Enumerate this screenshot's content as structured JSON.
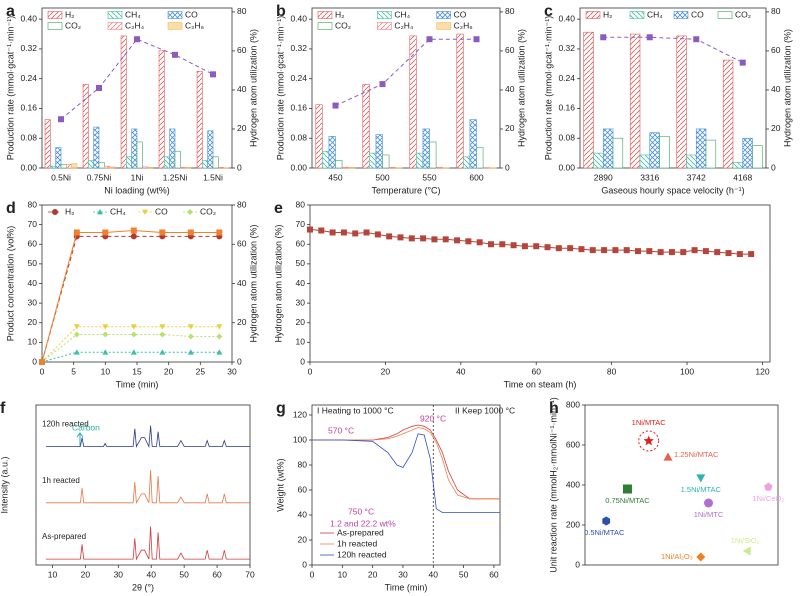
{
  "chart_data": [
    {
      "panel": "a",
      "type": "bar",
      "categories": [
        "0.5Ni",
        "0.75Ni",
        "1Ni",
        "1.25Ni",
        "1.5Ni"
      ],
      "xlabel": "Ni loading (wt%)",
      "ylabel": "Production rate (mmol·gcat⁻¹·min⁻¹)",
      "y2label": "Hydrogen atom utilization (%)",
      "ylim": [
        0,
        0.43
      ],
      "yticks": [
        {
          "value": 0,
          "label": "0.00"
        },
        0.08,
        0.16,
        0.24,
        0.32,
        {
          "value": 0.4,
          "label": "0.40"
        }
      ],
      "y2lim": [
        0,
        82
      ],
      "y2ticks": [
        0,
        20,
        40,
        60,
        80
      ],
      "legend": "top",
      "series": [
        {
          "name": "H₂",
          "color": "#e05a5a",
          "hatch": "/",
          "values": [
            0.13,
            0.225,
            0.355,
            0.315,
            0.26
          ]
        },
        {
          "name": "CH₄",
          "color": "#3cbfa0",
          "hatch": "\\",
          "values": [
            0.005,
            0.02,
            0.03,
            0.03,
            0.02
          ]
        },
        {
          "name": "CO",
          "color": "#4a90d9",
          "hatch": "x",
          "values": [
            0.055,
            0.11,
            0.105,
            0.105,
            0.1
          ]
        },
        {
          "name": "CO₂",
          "color": "#3aa858",
          "hatch": "none",
          "values": [
            0.01,
            0.015,
            0.07,
            0.045,
            0.03
          ]
        },
        {
          "name": "C₂H₄",
          "color": "#f08080",
          "hatch": "/",
          "values": [
            0.01,
            0.005,
            0.003,
            0.002,
            0.002
          ]
        },
        {
          "name": "C₂H₆",
          "color": "#f5c060",
          "hatch": "solid",
          "values": [
            0.012,
            0.003,
            0.002,
            0.002,
            0.001
          ]
        },
        {
          "color": "#8a5cc0",
          "axis": "y2",
          "marker": "square",
          "line_style": "dashed",
          "values": [
            25,
            41,
            66,
            58,
            48
          ]
        }
      ]
    },
    {
      "panel": "b",
      "type": "bar",
      "categories": [
        "450",
        "500",
        "550",
        "600"
      ],
      "xlabel": "Temperature (°C)",
      "ylabel": "Production rate (mmol·gcat⁻¹·min⁻¹)",
      "y2label": "Hydrogen atom utilization (%)",
      "ylim": [
        0,
        0.43
      ],
      "yticks": [
        {
          "value": 0,
          "label": "0.00"
        },
        0.08,
        0.16,
        0.24,
        0.32,
        {
          "value": 0.4,
          "label": "0.40"
        }
      ],
      "y2lim": [
        0,
        82
      ],
      "y2ticks": [
        0,
        20,
        40,
        60,
        80
      ],
      "legend": "top",
      "series": [
        {
          "name": "H₂",
          "color": "#e05a5a",
          "hatch": "/",
          "values": [
            0.17,
            0.225,
            0.355,
            0.36
          ]
        },
        {
          "name": "CH₄",
          "color": "#3cbfa0",
          "hatch": "\\",
          "values": [
            0.045,
            0.04,
            0.04,
            0.03
          ]
        },
        {
          "name": "CO",
          "color": "#4a90d9",
          "hatch": "x",
          "values": [
            0.085,
            0.09,
            0.105,
            0.13
          ]
        },
        {
          "name": "CO₂",
          "color": "#3aa858",
          "hatch": "none",
          "values": [
            0.02,
            0.035,
            0.07,
            0.055
          ]
        },
        {
          "name": "C₂H₄",
          "color": "#f08080",
          "hatch": "/",
          "values": [
            0.002,
            0.002,
            0.002,
            0.001
          ]
        },
        {
          "name": "C₂H₆",
          "color": "#f5c060",
          "hatch": "solid",
          "values": [
            0.002,
            0.001,
            0.001,
            0.001
          ]
        },
        {
          "color": "#8a5cc0",
          "axis": "y2",
          "marker": "square",
          "line_style": "dashed",
          "values": [
            32,
            43,
            66,
            66
          ]
        }
      ]
    },
    {
      "panel": "c",
      "type": "bar",
      "categories": [
        "2890",
        "3316",
        "3742",
        "4168"
      ],
      "xlabel": "Gaseous hourly space velocity (h⁻¹)",
      "ylabel": "Production rate (mmol·gcat⁻¹·min⁻¹)",
      "y2label": "Hydrogen atom utilization (%)",
      "ylim": [
        0,
        0.43
      ],
      "yticks": [
        {
          "value": 0,
          "label": "0.00"
        },
        0.08,
        0.16,
        0.24,
        0.32,
        {
          "value": 0.4,
          "label": "0.40"
        }
      ],
      "y2lim": [
        0,
        82
      ],
      "y2ticks": [
        0,
        20,
        40,
        60,
        80
      ],
      "legend": "top",
      "series": [
        {
          "name": "H₂",
          "color": "#e05a5a",
          "hatch": "/",
          "values": [
            0.365,
            0.36,
            0.355,
            0.29
          ]
        },
        {
          "name": "CH₄",
          "color": "#3cbfa0",
          "hatch": "\\",
          "values": [
            0.04,
            0.035,
            0.035,
            0.015
          ]
        },
        {
          "name": "CO",
          "color": "#4a90d9",
          "hatch": "x",
          "values": [
            0.105,
            0.095,
            0.105,
            0.08
          ]
        },
        {
          "name": "CO₂",
          "color": "#3aa858",
          "hatch": "none",
          "values": [
            0.08,
            0.085,
            0.075,
            0.06
          ]
        },
        {
          "color": "#8a5cc0",
          "axis": "y2",
          "marker": "square",
          "line_style": "dashed",
          "values": [
            67,
            67,
            66,
            54
          ]
        }
      ]
    },
    {
      "panel": "d",
      "type": "line",
      "x": [
        0,
        5.5,
        10,
        14.5,
        19,
        23.5,
        28
      ],
      "xlabel": "Time (min)",
      "ylabel": "Product concentration (vol%)",
      "y2label": "Hydrogen atom utilization (%)",
      "xlim": [
        0,
        30
      ],
      "xticks": [
        0,
        5,
        10,
        15,
        20,
        25,
        30
      ],
      "ylim": [
        0,
        80
      ],
      "yticks": [
        0,
        10,
        20,
        30,
        40,
        50,
        60,
        70,
        80
      ],
      "y2lim": [
        0,
        80
      ],
      "y2ticks": [
        0,
        20,
        40,
        60,
        80
      ],
      "legend": "top",
      "series": [
        {
          "name": "H₂",
          "color": "#b03a2e",
          "marker": "circle",
          "line_style": "dashed",
          "values": [
            0,
            64,
            64,
            64,
            64,
            64,
            64
          ]
        },
        {
          "name": "CH₄",
          "color": "#3cbfa8",
          "marker": "triangle",
          "line_style": "dotted",
          "values": [
            0,
            5,
            5,
            5,
            5,
            5,
            5
          ]
        },
        {
          "name": "CO",
          "color": "#e8d040",
          "marker": "triangle-down",
          "line_style": "dotted",
          "values": [
            0,
            18,
            18,
            18,
            18,
            18,
            18
          ]
        },
        {
          "name": "CO₂",
          "color": "#b8e070",
          "marker": "diamond",
          "line_style": "dotted",
          "values": [
            0,
            14,
            14,
            14,
            14,
            13,
            13
          ]
        },
        {
          "color": "#f08030",
          "axis": "y2",
          "marker": "square",
          "line_style": "solid",
          "values": [
            0,
            66,
            66,
            67,
            66,
            66,
            66
          ]
        }
      ]
    },
    {
      "panel": "e",
      "type": "line",
      "x": [
        0,
        3,
        6,
        9,
        12,
        15,
        18,
        21,
        24,
        27,
        30,
        33,
        36,
        39,
        42,
        45,
        48,
        51,
        54,
        57,
        60,
        63,
        66,
        69,
        72,
        75,
        78,
        81,
        84,
        87,
        90,
        93,
        96,
        99,
        102,
        105,
        108,
        111,
        114,
        117
      ],
      "xlabel": "Time on steam (h)",
      "ylabel": "Hydrogen atom utilization (%)",
      "xlim": [
        0,
        122
      ],
      "xticks": [
        0,
        20,
        40,
        60,
        80,
        100,
        120
      ],
      "ylim": [
        0,
        80
      ],
      "yticks": [
        0,
        10,
        20,
        30,
        40,
        50,
        60,
        70,
        80
      ],
      "series": [
        {
          "color": "#b5453a",
          "marker": "square",
          "line_style": "solid",
          "values": [
            67.5,
            67,
            66,
            66,
            65.5,
            66,
            65,
            64,
            63.5,
            63,
            63,
            62.5,
            62.5,
            62,
            61.5,
            61,
            60,
            60,
            59.5,
            59,
            59,
            58.5,
            58,
            58,
            57.5,
            57,
            57,
            57,
            57,
            56.5,
            56.5,
            56,
            56,
            56,
            57,
            56.5,
            56,
            55.5,
            55,
            55
          ]
        }
      ]
    },
    {
      "panel": "f",
      "type": "line",
      "x": [
        8,
        18.5,
        19,
        19.5,
        25.5,
        26,
        26.5,
        34.5,
        35,
        35.5,
        37,
        38,
        39.3,
        39.8,
        40.3,
        41.6,
        42.1,
        42.6,
        48,
        49,
        50,
        56.4,
        57,
        57.6,
        61.6,
        62.2,
        62.8,
        70
      ],
      "xlabel": "2θ (°)",
      "ylabel": "Intensity (a.u.)",
      "xlim": [
        5,
        70
      ],
      "xticks": [
        10,
        20,
        30,
        40,
        50,
        60,
        70
      ],
      "ylim": [
        0,
        2.7
      ],
      "legend": "inline",
      "annotations": [
        {
          "text": "Carbon",
          "color": "#2ab0a0"
        }
      ],
      "series": [
        {
          "name": "120h reacted",
          "color": "#2a3a8c",
          "line_style": "solid",
          "values": [
            2.0,
            2.0,
            2.15,
            2.0,
            2.0,
            2.05,
            2.0,
            2.0,
            2.3,
            2.0,
            2.15,
            2.15,
            2.0,
            2.35,
            2.0,
            2.0,
            2.25,
            2.0,
            2.0,
            2.1,
            2.0,
            2.0,
            2.1,
            2.0,
            2.0,
            2.1,
            2.0,
            2.0
          ]
        },
        {
          "name": "1h reacted",
          "color": "#e8784a",
          "line_style": "solid",
          "values": [
            1.05,
            1.05,
            1.3,
            1.05,
            1.05,
            1.05,
            1.05,
            1.05,
            1.4,
            1.05,
            1.2,
            1.2,
            1.05,
            1.6,
            1.05,
            1.05,
            1.5,
            1.05,
            1.05,
            1.15,
            1.05,
            1.05,
            1.2,
            1.05,
            1.05,
            1.2,
            1.05,
            1.05
          ]
        },
        {
          "name": "As-prepared",
          "color": "#d03a3a",
          "line_style": "solid",
          "values": [
            0.1,
            0.1,
            0.35,
            0.1,
            0.1,
            0.1,
            0.1,
            0.1,
            0.45,
            0.1,
            0.25,
            0.25,
            0.1,
            0.65,
            0.1,
            0.1,
            0.55,
            0.1,
            0.1,
            0.2,
            0.1,
            0.1,
            0.25,
            0.1,
            0.1,
            0.25,
            0.1,
            0.1
          ]
        }
      ]
    },
    {
      "panel": "g",
      "type": "line",
      "x": [
        0,
        10,
        20,
        25,
        28,
        30,
        33,
        35,
        37,
        39,
        41,
        43,
        45,
        48,
        52,
        56,
        62
      ],
      "xlabel": "Time (min)",
      "ylabel": "Weight (wt%)",
      "xlim": [
        0,
        62
      ],
      "xticks": [
        0,
        10,
        20,
        30,
        40,
        50,
        60
      ],
      "ylim": [
        0,
        128
      ],
      "yticks": [
        0,
        20,
        40,
        60,
        80,
        100,
        120
      ],
      "legend": "lower left",
      "vline": 40,
      "annotations": [
        {
          "text": "I Heating to 1000 °C",
          "color": "#222222"
        },
        {
          "text": "II  Keep 1000 °C",
          "color": "#222222"
        },
        {
          "text": "570 °C",
          "color": "#c040a0"
        },
        {
          "text": "920 °C",
          "color": "#c040a0"
        },
        {
          "text": "750 °C",
          "color": "#c040a0"
        },
        {
          "text": "1.2 and 22.2 wt%",
          "color": "#c040a0"
        }
      ],
      "series": [
        {
          "name": "As-prepared",
          "color": "#d04040",
          "line_style": "solid",
          "values": [
            100,
            100,
            100,
            102,
            105,
            108,
            111,
            112,
            111,
            108,
            100,
            90,
            75,
            60,
            53,
            53,
            53
          ]
        },
        {
          "name": "1h reacted",
          "color": "#f08050",
          "line_style": "solid",
          "values": [
            100,
            100,
            100,
            101,
            103,
            105,
            108,
            110,
            109,
            106,
            98,
            85,
            68,
            56,
            53,
            53,
            53
          ]
        },
        {
          "name": "120h reacted",
          "color": "#3050c0",
          "line_style": "solid",
          "values": [
            100,
            100,
            99,
            90,
            80,
            78,
            90,
            105,
            104,
            85,
            45,
            42,
            42,
            42,
            42,
            42,
            42
          ]
        }
      ]
    },
    {
      "panel": "h",
      "type": "scatter",
      "ylabel": "Unit reaction rate (mmolH₂·mmolNi⁻¹·min⁻¹)",
      "ylim": [
        0,
        800
      ],
      "yticks": [
        0,
        200,
        400,
        600,
        800
      ],
      "categories": [
        "1Ni/MTAC",
        "1.25Ni/MTAC",
        "1.5Ni/MTAC",
        "0.75Ni/MTAC",
        "1Ni/CeO₂",
        "1Ni/MTC",
        "0.5Ni/MTAC",
        "1Ni/SiO₂",
        "1Ni/Al₂O₃"
      ],
      "values": [
        620,
        540,
        435,
        380,
        390,
        310,
        220,
        70,
        40
      ],
      "colors": [
        "#e02020",
        "#e8604c",
        "#2bb5b0",
        "#2e7d32",
        "#f0a0e0",
        "#b070d0",
        "#2f4fa8",
        "#c8ec90",
        "#f08020"
      ],
      "markers": [
        "star",
        "triangle",
        "triangle-down",
        "square",
        "pentagon",
        "circle",
        "hexagon",
        "triangle-left",
        "diamond"
      ]
    }
  ]
}
